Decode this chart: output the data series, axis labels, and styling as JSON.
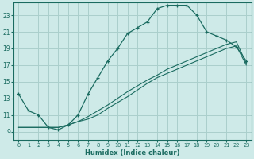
{
  "title": "",
  "xlabel": "Humidex (Indice chaleur)",
  "bg_color": "#ceeae8",
  "grid_color": "#aacfcc",
  "line_color": "#1a6b60",
  "xlim": [
    -0.5,
    23.5
  ],
  "ylim": [
    8.0,
    24.5
  ],
  "xticks": [
    0,
    1,
    2,
    3,
    4,
    5,
    6,
    7,
    8,
    9,
    10,
    11,
    12,
    13,
    14,
    15,
    16,
    17,
    18,
    19,
    20,
    21,
    22,
    23
  ],
  "yticks": [
    9,
    11,
    13,
    15,
    17,
    19,
    21,
    23
  ],
  "line1_x": [
    0,
    1,
    2,
    3,
    4,
    5,
    6,
    7,
    8,
    9,
    10,
    11,
    12,
    13,
    14,
    15,
    16,
    17,
    18,
    19,
    20,
    21,
    22,
    23
  ],
  "line1_y": [
    13.5,
    11.5,
    11.0,
    9.5,
    9.2,
    9.8,
    11.0,
    13.5,
    15.5,
    17.5,
    19.0,
    20.8,
    21.5,
    22.2,
    23.8,
    24.2,
    24.2,
    24.2,
    23.0,
    21.0,
    20.5,
    20.0,
    19.2,
    17.5
  ],
  "line2_x": [
    0,
    1,
    2,
    3,
    4,
    5,
    6,
    7,
    8,
    9,
    10,
    11,
    12,
    13,
    14,
    15,
    16,
    17,
    18,
    19,
    20,
    21,
    22,
    23
  ],
  "line2_y": [
    9.5,
    9.5,
    9.5,
    9.5,
    9.5,
    9.8,
    10.2,
    10.8,
    11.5,
    12.2,
    13.0,
    13.8,
    14.5,
    15.2,
    15.8,
    16.5,
    17.0,
    17.5,
    18.0,
    18.5,
    19.0,
    19.5,
    19.8,
    17.2
  ],
  "line3_x": [
    0,
    1,
    2,
    3,
    4,
    5,
    6,
    7,
    8,
    9,
    10,
    11,
    12,
    13,
    14,
    15,
    16,
    17,
    18,
    19,
    20,
    21,
    22,
    23
  ],
  "line3_y": [
    9.5,
    9.5,
    9.5,
    9.5,
    9.5,
    9.8,
    10.2,
    10.5,
    11.0,
    11.8,
    12.5,
    13.2,
    14.0,
    14.8,
    15.5,
    16.0,
    16.5,
    17.0,
    17.5,
    18.0,
    18.5,
    19.0,
    19.3,
    17.0
  ]
}
